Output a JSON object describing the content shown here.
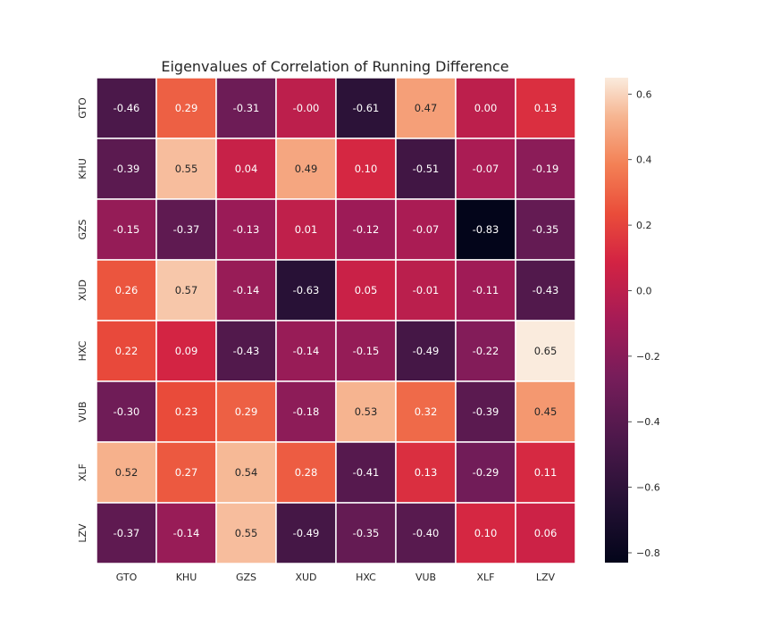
{
  "chart_data": {
    "type": "heatmap",
    "title": "Eigenvalues of Correlation of Running Difference",
    "x_labels": [
      "GTO",
      "KHU",
      "GZS",
      "XUD",
      "HXC",
      "VUB",
      "XLF",
      "LZV"
    ],
    "y_labels": [
      "GTO",
      "KHU",
      "GZS",
      "XUD",
      "HXC",
      "VUB",
      "XLF",
      "LZV"
    ],
    "values": [
      [
        -0.46,
        0.29,
        -0.31,
        -0.0,
        -0.61,
        0.47,
        0.0,
        0.13
      ],
      [
        -0.39,
        0.55,
        0.04,
        0.49,
        0.1,
        -0.51,
        -0.07,
        -0.19
      ],
      [
        -0.15,
        -0.37,
        -0.13,
        0.01,
        -0.12,
        -0.07,
        -0.83,
        -0.35
      ],
      [
        0.26,
        0.57,
        -0.14,
        -0.63,
        0.05,
        -0.01,
        -0.11,
        -0.43
      ],
      [
        0.22,
        0.09,
        -0.43,
        -0.14,
        -0.15,
        -0.49,
        -0.22,
        0.65
      ],
      [
        -0.3,
        0.23,
        0.29,
        -0.18,
        0.53,
        0.32,
        -0.39,
        0.45
      ],
      [
        0.52,
        0.27,
        0.54,
        0.28,
        -0.41,
        0.13,
        -0.29,
        0.11
      ],
      [
        -0.37,
        -0.14,
        0.55,
        -0.49,
        -0.35,
        -0.4,
        0.1,
        0.06
      ]
    ],
    "cell_text": [
      [
        "-0.46",
        "0.29",
        "-0.31",
        "-0.00",
        "-0.61",
        "0.47",
        "0.00",
        "0.13"
      ],
      [
        "-0.39",
        "0.55",
        "0.04",
        "0.49",
        "0.10",
        "-0.51",
        "-0.07",
        "-0.19"
      ],
      [
        "-0.15",
        "-0.37",
        "-0.13",
        "0.01",
        "-0.12",
        "-0.07",
        "-0.83",
        "-0.35"
      ],
      [
        "0.26",
        "0.57",
        "-0.14",
        "-0.63",
        "0.05",
        "-0.01",
        "-0.11",
        "-0.43"
      ],
      [
        "0.22",
        "0.09",
        "-0.43",
        "-0.14",
        "-0.15",
        "-0.49",
        "-0.22",
        "0.65"
      ],
      [
        "-0.30",
        "0.23",
        "0.29",
        "-0.18",
        "0.53",
        "0.32",
        "-0.39",
        "0.45"
      ],
      [
        "0.52",
        "0.27",
        "0.54",
        "0.28",
        "-0.41",
        "0.13",
        "-0.29",
        "0.11"
      ],
      [
        "-0.37",
        "-0.14",
        "0.55",
        "-0.49",
        "-0.35",
        "-0.40",
        "0.10",
        "0.06"
      ]
    ],
    "colormap": "rocket",
    "vmin": -0.83,
    "vmax": 0.65,
    "colorbar_ticks": [
      0.6,
      0.4,
      0.2,
      0.0,
      -0.2,
      -0.4,
      -0.6,
      -0.8
    ],
    "colorbar_tick_labels": [
      "0.6",
      "0.4",
      "0.2",
      "0.0",
      "−0.2",
      "−0.4",
      "−0.6",
      "−0.8"
    ],
    "grid": false,
    "cell_separator_color": "#ffffff"
  }
}
